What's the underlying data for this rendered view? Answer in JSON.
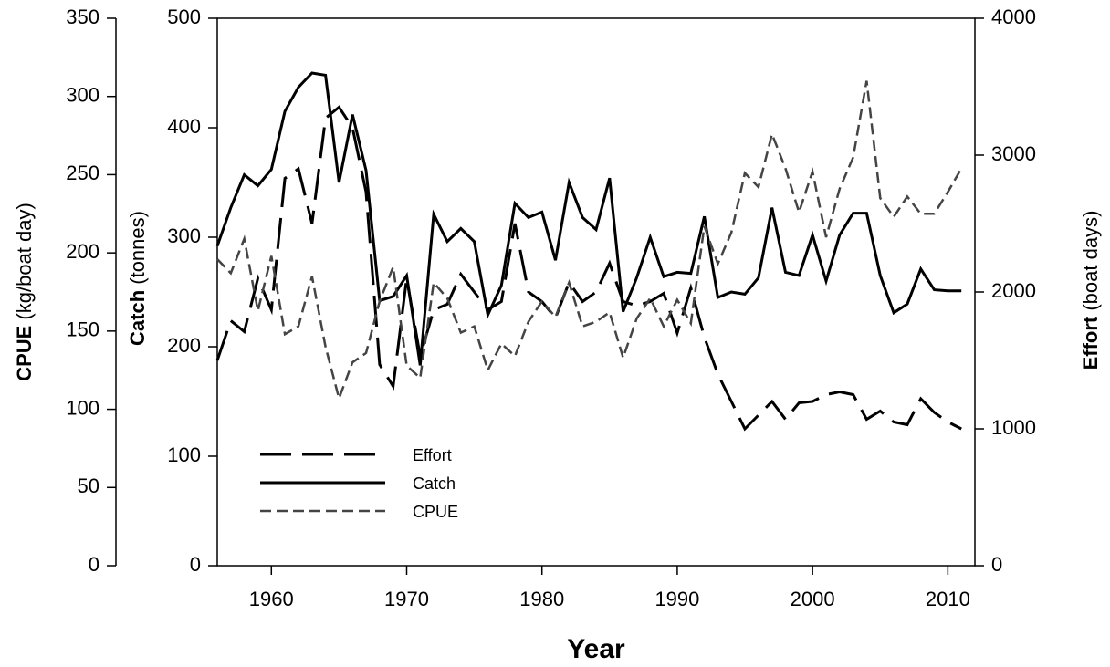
{
  "chart_data": {
    "type": "line",
    "xlabel": "Year",
    "ylabel": "Catch",
    "yunit": "(tonnes)",
    "y2label": "Effort",
    "y2unit": "(boat days)",
    "y3label": "CPUE",
    "y3unit": "(kg/boat day)",
    "x": [
      1956,
      1957,
      1958,
      1959,
      1960,
      1961,
      1962,
      1963,
      1964,
      1965,
      1966,
      1967,
      1968,
      1969,
      1970,
      1971,
      1972,
      1973,
      1974,
      1975,
      1976,
      1977,
      1978,
      1979,
      1980,
      1981,
      1982,
      1983,
      1984,
      1985,
      1986,
      1987,
      1988,
      1989,
      1990,
      1991,
      1992,
      1993,
      1994,
      1995,
      1996,
      1997,
      1998,
      1999,
      2000,
      2001,
      2002,
      2003,
      2004,
      2005,
      2006,
      2007,
      2008,
      2009,
      2010,
      2011
    ],
    "xlim": [
      1956,
      2012
    ],
    "xticks": [
      1960,
      1970,
      1980,
      1990,
      2000,
      2010
    ],
    "ylim": [
      0,
      500
    ],
    "yticks": [
      0,
      100,
      200,
      300,
      400,
      500
    ],
    "y2lim": [
      0,
      4000
    ],
    "y2ticks": [
      0,
      1000,
      2000,
      3000,
      4000
    ],
    "y3lim": [
      0,
      350
    ],
    "y3ticks": [
      0,
      50,
      100,
      150,
      200,
      250,
      300,
      350
    ],
    "series": [
      {
        "name": "Effort",
        "color": "#000000",
        "dash": "long",
        "axis": "y2",
        "values": [
          1500,
          1790,
          1710,
          2100,
          1870,
          2830,
          2900,
          2500,
          3270,
          3350,
          3200,
          2730,
          1470,
          1310,
          2100,
          1530,
          1870,
          1910,
          2130,
          2000,
          1870,
          1930,
          2500,
          2000,
          1930,
          1810,
          2070,
          1930,
          2000,
          2210,
          1930,
          1900,
          1930,
          1990,
          1700,
          2030,
          1670,
          1400,
          1200,
          1000,
          1100,
          1200,
          1070,
          1190,
          1200,
          1250,
          1270,
          1250,
          1070,
          1130,
          1050,
          1030,
          1220,
          1120,
          1050,
          1000
        ]
      },
      {
        "name": "Catch",
        "color": "#000000",
        "dash": "solid",
        "axis": "y",
        "values": [
          292,
          327,
          357,
          347,
          362,
          415,
          437,
          450,
          448,
          350,
          412,
          361,
          242,
          246,
          265,
          183,
          321,
          296,
          308,
          296,
          229,
          256,
          331,
          318,
          323,
          279,
          350,
          318,
          307,
          354,
          232,
          263,
          300,
          264,
          268,
          267,
          319,
          245,
          250,
          248,
          263,
          327,
          268,
          265,
          302,
          260,
          302,
          322,
          322,
          265,
          231,
          239,
          271,
          252,
          251,
          251
        ]
      },
      {
        "name": "CPUE",
        "color": "#444444",
        "dash": "short",
        "axis": "y3",
        "values": [
          196,
          187,
          209,
          163,
          198,
          148,
          153,
          185,
          140,
          107,
          130,
          136,
          169,
          191,
          128,
          120,
          181,
          171,
          149,
          153,
          125,
          142,
          134,
          156,
          169,
          159,
          181,
          153,
          156,
          162,
          133,
          158,
          171,
          153,
          170,
          155,
          217,
          193,
          213,
          251,
          242,
          276,
          254,
          226,
          252,
          210,
          241,
          261,
          310,
          235,
          223,
          236,
          225,
          225,
          239,
          254
        ]
      }
    ]
  }
}
